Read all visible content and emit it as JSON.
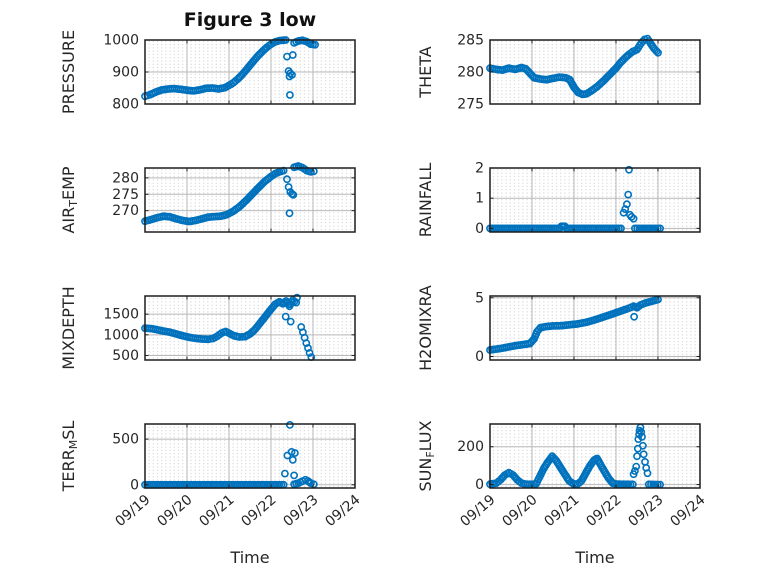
{
  "figure": {
    "title": "Figure 3 low",
    "xlabel": "Time",
    "marker_color": "#0072BD",
    "axis_color": "#1d1d1d",
    "grid_color": "#b9b9b9",
    "minor_grid_color": "#c8c8c8",
    "background": "#ffffff"
  },
  "x_axis": {
    "range": [
      0,
      5
    ],
    "tick_labels": [
      "09/19",
      "09/20",
      "09/21",
      "09/22",
      "09/23",
      "09/24"
    ],
    "label": "Time"
  },
  "chart_data": [
    {
      "id": "pressure",
      "type": "scatter",
      "row": 0,
      "col": 0,
      "ylabel_parts": [
        {
          "text": "PRESSURE",
          "sub": false
        }
      ],
      "yticks": [
        800,
        900,
        1000
      ],
      "ylim": [
        800,
        1000
      ],
      "dense": [
        [
          [
            0,
            824
          ],
          [
            0.12,
            829
          ],
          [
            0.25,
            837
          ],
          [
            0.4,
            844
          ],
          [
            0.55,
            847
          ],
          [
            0.7,
            848
          ],
          [
            0.85,
            846
          ],
          [
            1.0,
            843
          ],
          [
            1.15,
            841
          ],
          [
            1.3,
            844
          ],
          [
            1.45,
            849
          ],
          [
            1.6,
            850
          ],
          [
            1.75,
            847
          ],
          [
            1.9,
            851
          ],
          [
            2.0,
            858
          ],
          [
            2.1,
            866
          ],
          [
            2.2,
            877
          ],
          [
            2.3,
            890
          ],
          [
            2.4,
            905
          ],
          [
            2.5,
            921
          ],
          [
            2.6,
            937
          ],
          [
            2.7,
            952
          ],
          [
            2.8,
            965
          ],
          [
            2.9,
            977
          ],
          [
            3.0,
            987
          ],
          [
            3.1,
            994
          ],
          [
            3.2,
            998
          ],
          [
            3.35,
            1000
          ]
        ],
        [
          [
            3.55,
            991
          ],
          [
            3.65,
            997
          ],
          [
            3.75,
            999
          ],
          [
            3.85,
            995
          ],
          [
            3.95,
            987
          ],
          [
            4.05,
            985
          ]
        ]
      ],
      "outliers": [
        [
          3.38,
          948
        ],
        [
          3.52,
          953
        ],
        [
          3.42,
          903
        ],
        [
          3.46,
          896
        ],
        [
          3.5,
          891
        ],
        [
          3.44,
          886
        ],
        [
          3.45,
          828
        ]
      ]
    },
    {
      "id": "theta",
      "type": "scatter",
      "row": 0,
      "col": 1,
      "ylabel_parts": [
        {
          "text": "THETA",
          "sub": false
        }
      ],
      "yticks": [
        275,
        280,
        285
      ],
      "ylim": [
        275,
        285
      ],
      "dense": [
        [
          [
            0,
            280.6
          ],
          [
            0.15,
            280.4
          ],
          [
            0.3,
            280.3
          ],
          [
            0.45,
            280.6
          ],
          [
            0.6,
            280.4
          ],
          [
            0.75,
            280.7
          ],
          [
            0.85,
            280.5
          ],
          [
            0.95,
            279.8
          ],
          [
            1.05,
            279.1
          ],
          [
            1.2,
            278.9
          ],
          [
            1.35,
            278.8
          ],
          [
            1.5,
            279.0
          ],
          [
            1.65,
            279.2
          ],
          [
            1.8,
            279.1
          ],
          [
            1.9,
            278.8
          ],
          [
            2.0,
            277.6
          ],
          [
            2.1,
            276.8
          ],
          [
            2.2,
            276.5
          ],
          [
            2.3,
            276.6
          ],
          [
            2.4,
            277.0
          ],
          [
            2.55,
            277.7
          ],
          [
            2.7,
            278.6
          ],
          [
            2.85,
            279.6
          ],
          [
            3.0,
            280.6
          ],
          [
            3.1,
            281.4
          ],
          [
            3.2,
            282.1
          ],
          [
            3.3,
            282.7
          ],
          [
            3.4,
            283.2
          ],
          [
            3.5,
            283.5
          ],
          [
            3.6,
            284.5
          ],
          [
            3.68,
            285.1
          ],
          [
            3.75,
            285.2
          ],
          [
            3.82,
            284.5
          ],
          [
            3.9,
            283.7
          ],
          [
            4.0,
            283.0
          ]
        ]
      ],
      "outliers": []
    },
    {
      "id": "air-temp",
      "type": "scatter",
      "row": 1,
      "col": 0,
      "ylabel_parts": [
        {
          "text": "AIR",
          "sub": false
        },
        {
          "text": "T",
          "sub": true
        },
        {
          "text": "EMP",
          "sub": false
        }
      ],
      "yticks": [
        270,
        275,
        280
      ],
      "ylim": [
        263.5,
        283
      ],
      "dense": [
        [
          [
            0,
            266.8
          ],
          [
            0.15,
            267.3
          ],
          [
            0.3,
            267.9
          ],
          [
            0.45,
            268.3
          ],
          [
            0.6,
            268.1
          ],
          [
            0.75,
            267.5
          ],
          [
            0.9,
            267.0
          ],
          [
            1.05,
            266.7
          ],
          [
            1.2,
            267.0
          ],
          [
            1.35,
            267.5
          ],
          [
            1.5,
            268.0
          ],
          [
            1.65,
            268.2
          ],
          [
            1.8,
            268.3
          ],
          [
            1.95,
            268.8
          ],
          [
            2.1,
            269.8
          ],
          [
            2.25,
            271.2
          ],
          [
            2.4,
            273.0
          ],
          [
            2.55,
            275.0
          ],
          [
            2.7,
            277.0
          ],
          [
            2.85,
            278.9
          ],
          [
            3.0,
            280.4
          ],
          [
            3.1,
            281.3
          ],
          [
            3.2,
            281.8
          ],
          [
            3.3,
            282.2
          ]
        ],
        [
          [
            3.55,
            283.2
          ],
          [
            3.65,
            283.6
          ],
          [
            3.75,
            283.1
          ],
          [
            3.85,
            282.2
          ],
          [
            3.95,
            281.8
          ],
          [
            4.02,
            282.0
          ]
        ]
      ],
      "outliers": [
        [
          3.38,
          279.6
        ],
        [
          3.42,
          277.2
        ],
        [
          3.46,
          275.7
        ],
        [
          3.5,
          275.1
        ],
        [
          3.53,
          274.8
        ],
        [
          3.44,
          269.2
        ]
      ]
    },
    {
      "id": "rainfall",
      "type": "scatter",
      "row": 1,
      "col": 1,
      "ylabel_parts": [
        {
          "text": "RAINFALL",
          "sub": false
        }
      ],
      "yticks": [
        0,
        1,
        2
      ],
      "ylim": [
        -0.12,
        2.0
      ],
      "dense": [
        [
          [
            0,
            0
          ],
          [
            1.66,
            0
          ],
          [
            1.7,
            0.07
          ],
          [
            1.78,
            0.07
          ],
          [
            1.82,
            0
          ],
          [
            3.12,
            0
          ]
        ],
        [
          [
            3.45,
            0
          ],
          [
            4.05,
            0
          ]
        ]
      ],
      "outliers": [
        [
          3.18,
          0.52
        ],
        [
          3.22,
          0.64
        ],
        [
          3.26,
          0.8
        ],
        [
          3.29,
          1.12
        ],
        [
          3.31,
          1.94
        ],
        [
          3.33,
          0.45
        ],
        [
          3.37,
          0.38
        ],
        [
          3.42,
          0.32
        ]
      ]
    },
    {
      "id": "mixdepth",
      "type": "scatter",
      "row": 2,
      "col": 0,
      "ylabel_parts": [
        {
          "text": "MIXDEPTH",
          "sub": false
        }
      ],
      "yticks": [
        500,
        1000,
        1500
      ],
      "ylim": [
        390,
        1940
      ],
      "dense": [
        [
          [
            0,
            1160
          ],
          [
            0.15,
            1150
          ],
          [
            0.3,
            1120
          ],
          [
            0.45,
            1090
          ],
          [
            0.6,
            1060
          ],
          [
            0.75,
            1020
          ],
          [
            0.9,
            975
          ],
          [
            1.05,
            940
          ],
          [
            1.2,
            915
          ],
          [
            1.35,
            898
          ],
          [
            1.5,
            890
          ],
          [
            1.62,
            910
          ],
          [
            1.72,
            965
          ],
          [
            1.82,
            1040
          ],
          [
            1.92,
            1080
          ],
          [
            2.02,
            1030
          ],
          [
            2.12,
            975
          ],
          [
            2.25,
            948
          ],
          [
            2.38,
            955
          ],
          [
            2.5,
            1020
          ],
          [
            2.6,
            1110
          ],
          [
            2.7,
            1230
          ],
          [
            2.8,
            1360
          ],
          [
            2.9,
            1490
          ],
          [
            3.0,
            1620
          ],
          [
            3.1,
            1740
          ],
          [
            3.2,
            1800
          ],
          [
            3.28,
            1750
          ],
          [
            3.36,
            1820
          ],
          [
            3.44,
            1690
          ],
          [
            3.52,
            1840
          ],
          [
            3.6,
            1780
          ]
        ]
      ],
      "outliers": [
        [
          3.35,
          1440
        ],
        [
          3.47,
          1320
        ],
        [
          3.62,
          1900
        ],
        [
          3.72,
          1190
        ],
        [
          3.76,
          1060
        ],
        [
          3.8,
          930
        ],
        [
          3.84,
          800
        ],
        [
          3.88,
          680
        ],
        [
          3.92,
          560
        ],
        [
          3.96,
          460
        ]
      ]
    },
    {
      "id": "h2omixra",
      "type": "scatter",
      "row": 2,
      "col": 1,
      "ylabel_parts": [
        {
          "text": "H2OMIXRA",
          "sub": false
        }
      ],
      "yticks": [
        0,
        5
      ],
      "ylim": [
        -0.3,
        5.15
      ],
      "dense": [
        [
          [
            0,
            0.55
          ],
          [
            0.2,
            0.65
          ],
          [
            0.4,
            0.78
          ],
          [
            0.6,
            0.92
          ],
          [
            0.8,
            1.02
          ],
          [
            0.95,
            1.1
          ],
          [
            1.05,
            1.5
          ],
          [
            1.12,
            2.1
          ],
          [
            1.2,
            2.45
          ],
          [
            1.35,
            2.55
          ],
          [
            1.5,
            2.6
          ],
          [
            1.7,
            2.62
          ],
          [
            1.9,
            2.7
          ],
          [
            2.1,
            2.78
          ],
          [
            2.3,
            2.92
          ],
          [
            2.5,
            3.12
          ],
          [
            2.7,
            3.36
          ],
          [
            2.9,
            3.6
          ],
          [
            3.1,
            3.85
          ],
          [
            3.3,
            4.1
          ],
          [
            3.42,
            4.28
          ],
          [
            3.5,
            4.15
          ],
          [
            3.58,
            4.38
          ],
          [
            3.7,
            4.55
          ],
          [
            3.8,
            4.65
          ],
          [
            3.9,
            4.75
          ],
          [
            4.0,
            4.85
          ]
        ]
      ],
      "outliers": [
        [
          3.43,
          3.38
        ]
      ]
    },
    {
      "id": "terr-msl",
      "type": "scatter",
      "row": 3,
      "col": 0,
      "ylabel_parts": [
        {
          "text": "TERR",
          "sub": false
        },
        {
          "text": "M",
          "sub": true
        },
        {
          "text": "SL",
          "sub": false
        }
      ],
      "yticks": [
        0,
        500
      ],
      "ylim": [
        -35,
        665
      ],
      "dense": [
        [
          [
            0,
            0
          ],
          [
            3.3,
            0
          ]
        ],
        [
          [
            3.55,
            5
          ],
          [
            3.65,
            18
          ],
          [
            3.75,
            40
          ],
          [
            3.82,
            55
          ],
          [
            3.88,
            42
          ],
          [
            3.95,
            18
          ],
          [
            4.02,
            6
          ]
        ]
      ],
      "outliers": [
        [
          3.45,
          655
        ],
        [
          3.49,
          360
        ],
        [
          3.57,
          348
        ],
        [
          3.39,
          320
        ],
        [
          3.52,
          272
        ],
        [
          3.33,
          122
        ],
        [
          3.55,
          103
        ]
      ]
    },
    {
      "id": "sun-flux",
      "type": "scatter",
      "row": 3,
      "col": 1,
      "ylabel_parts": [
        {
          "text": "SUN",
          "sub": false
        },
        {
          "text": "F",
          "sub": true
        },
        {
          "text": "LUX",
          "sub": false
        }
      ],
      "yticks": [
        0,
        200
      ],
      "ylim": [
        -18,
        320
      ],
      "dense": [
        [
          [
            0,
            2
          ],
          [
            0.15,
            8
          ],
          [
            0.25,
            25
          ],
          [
            0.35,
            50
          ],
          [
            0.45,
            63
          ],
          [
            0.55,
            50
          ],
          [
            0.65,
            25
          ],
          [
            0.75,
            8
          ],
          [
            0.85,
            2
          ],
          [
            1.0,
            1
          ],
          [
            1.1,
            4
          ],
          [
            1.18,
            40
          ],
          [
            1.28,
            85
          ],
          [
            1.38,
            120
          ],
          [
            1.48,
            150
          ],
          [
            1.58,
            125
          ],
          [
            1.68,
            90
          ],
          [
            1.78,
            55
          ],
          [
            1.88,
            20
          ],
          [
            1.98,
            4
          ],
          [
            2.08,
            2
          ],
          [
            2.18,
            20
          ],
          [
            2.28,
            60
          ],
          [
            2.38,
            100
          ],
          [
            2.48,
            130
          ],
          [
            2.55,
            138
          ],
          [
            2.62,
            110
          ],
          [
            2.72,
            72
          ],
          [
            2.82,
            35
          ],
          [
            2.92,
            8
          ],
          [
            3.02,
            2
          ],
          [
            3.4,
            1
          ]
        ],
        [
          [
            3.78,
            1
          ],
          [
            4.05,
            0
          ]
        ]
      ],
      "outliers": [
        [
          3.42,
          55
        ],
        [
          3.45,
          72
        ],
        [
          3.48,
          95
        ],
        [
          3.5,
          150
        ],
        [
          3.52,
          190
        ],
        [
          3.53,
          240
        ],
        [
          3.55,
          265
        ],
        [
          3.56,
          285
        ],
        [
          3.58,
          302
        ],
        [
          3.6,
          278
        ],
        [
          3.62,
          252
        ],
        [
          3.64,
          205
        ],
        [
          3.66,
          160
        ],
        [
          3.69,
          120
        ],
        [
          3.72,
          88
        ],
        [
          3.75,
          60
        ]
      ]
    }
  ]
}
